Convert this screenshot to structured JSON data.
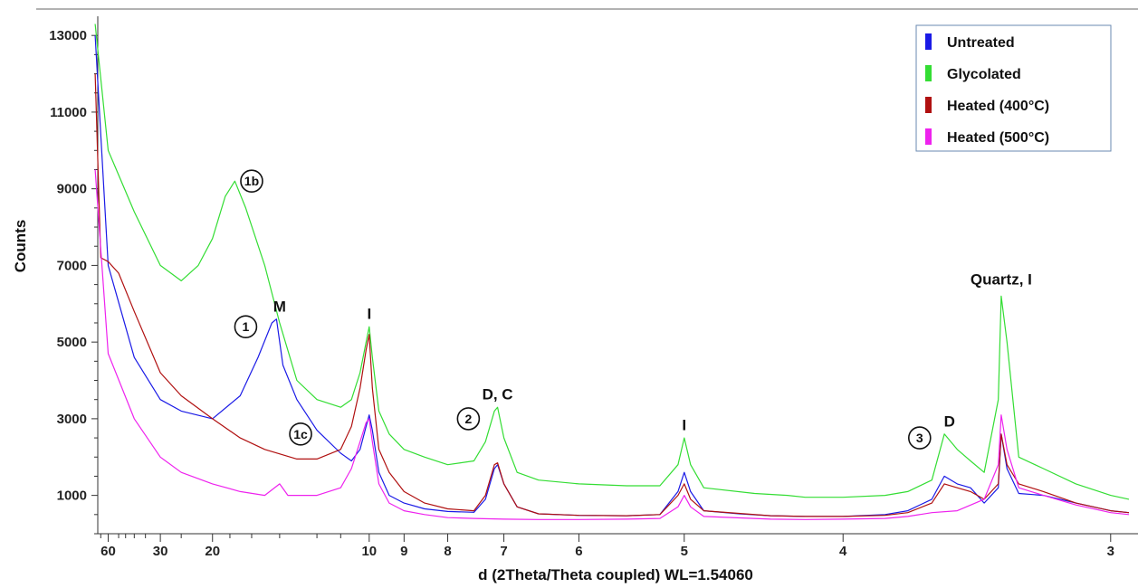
{
  "chart_data": {
    "type": "line",
    "xlabel": "d (2Theta/Theta coupled) WL=1.54060",
    "ylabel": "Counts",
    "x_axis_scale": "2theta (tick labels show d-spacing in Å)",
    "y_ticks": [
      1000,
      3000,
      5000,
      7000,
      9000,
      11000,
      13000
    ],
    "ylim": [
      0,
      13500
    ],
    "x_ticks": [
      {
        "label": "60",
        "d": 60
      },
      {
        "label": "30",
        "d": 30
      },
      {
        "label": "20",
        "d": 20
      },
      {
        "label": "10",
        "d": 10
      },
      {
        "label": "9",
        "d": 9
      },
      {
        "label": "8",
        "d": 8
      },
      {
        "label": "7",
        "d": 7
      },
      {
        "label": "6",
        "d": 6
      },
      {
        "label": "5",
        "d": 5
      },
      {
        "label": "4",
        "d": 4
      },
      {
        "label": "3",
        "d": 3
      }
    ],
    "xlim_d": [
      75,
      2.95
    ],
    "grid": false,
    "legend_position": "top-right",
    "series": [
      {
        "name": "Untreated",
        "color": "#1a1ae6",
        "points": [
          [
            80,
            13000
          ],
          [
            60,
            7000
          ],
          [
            40,
            4600
          ],
          [
            30,
            3500
          ],
          [
            25,
            3200
          ],
          [
            20,
            3000
          ],
          [
            17,
            3600
          ],
          [
            15.5,
            4600
          ],
          [
            14.5,
            5500
          ],
          [
            14.2,
            5600
          ],
          [
            13.8,
            4400
          ],
          [
            13,
            3500
          ],
          [
            12,
            2700
          ],
          [
            11,
            2100
          ],
          [
            10.6,
            1900
          ],
          [
            10.3,
            2200
          ],
          [
            10.1,
            2800
          ],
          [
            10.0,
            3100
          ],
          [
            9.9,
            2700
          ],
          [
            9.7,
            1600
          ],
          [
            9.4,
            1000
          ],
          [
            9,
            800
          ],
          [
            8.5,
            650
          ],
          [
            8,
            580
          ],
          [
            7.5,
            560
          ],
          [
            7.3,
            900
          ],
          [
            7.15,
            1700
          ],
          [
            7.1,
            1800
          ],
          [
            7.0,
            1300
          ],
          [
            6.8,
            700
          ],
          [
            6.5,
            520
          ],
          [
            6,
            480
          ],
          [
            5.5,
            470
          ],
          [
            5.2,
            500
          ],
          [
            5.05,
            1100
          ],
          [
            5.0,
            1600
          ],
          [
            4.95,
            1100
          ],
          [
            4.85,
            600
          ],
          [
            4.6,
            520
          ],
          [
            4.4,
            470
          ],
          [
            4.2,
            450
          ],
          [
            4.0,
            450
          ],
          [
            3.8,
            500
          ],
          [
            3.7,
            600
          ],
          [
            3.6,
            900
          ],
          [
            3.55,
            1500
          ],
          [
            3.5,
            1300
          ],
          [
            3.45,
            1200
          ],
          [
            3.4,
            800
          ],
          [
            3.35,
            1200
          ],
          [
            3.34,
            2600
          ],
          [
            3.32,
            1700
          ],
          [
            3.28,
            1050
          ],
          [
            3.2,
            1000
          ],
          [
            3.1,
            800
          ],
          [
            3.0,
            600
          ],
          [
            2.95,
            550
          ]
        ]
      },
      {
        "name": "Glycolated",
        "color": "#33dd33",
        "points": [
          [
            80,
            13300
          ],
          [
            60,
            10000
          ],
          [
            40,
            8400
          ],
          [
            30,
            7000
          ],
          [
            25,
            6600
          ],
          [
            22,
            7000
          ],
          [
            20,
            7700
          ],
          [
            18.5,
            8800
          ],
          [
            17.5,
            9200
          ],
          [
            16.5,
            8500
          ],
          [
            15,
            7000
          ],
          [
            14,
            5500
          ],
          [
            13,
            4000
          ],
          [
            12,
            3500
          ],
          [
            11,
            3300
          ],
          [
            10.6,
            3500
          ],
          [
            10.3,
            4200
          ],
          [
            10.1,
            5000
          ],
          [
            10.0,
            5400
          ],
          [
            9.9,
            4600
          ],
          [
            9.7,
            3200
          ],
          [
            9.4,
            2600
          ],
          [
            9,
            2200
          ],
          [
            8.5,
            2000
          ],
          [
            8,
            1800
          ],
          [
            7.5,
            1900
          ],
          [
            7.3,
            2400
          ],
          [
            7.15,
            3200
          ],
          [
            7.1,
            3300
          ],
          [
            7.0,
            2500
          ],
          [
            6.8,
            1600
          ],
          [
            6.5,
            1400
          ],
          [
            6,
            1300
          ],
          [
            5.5,
            1250
          ],
          [
            5.2,
            1250
          ],
          [
            5.05,
            1800
          ],
          [
            5.0,
            2500
          ],
          [
            4.95,
            1800
          ],
          [
            4.85,
            1200
          ],
          [
            4.5,
            1050
          ],
          [
            4.3,
            1000
          ],
          [
            4.2,
            950
          ],
          [
            4.0,
            950
          ],
          [
            3.8,
            1000
          ],
          [
            3.7,
            1100
          ],
          [
            3.6,
            1400
          ],
          [
            3.55,
            2600
          ],
          [
            3.5,
            2200
          ],
          [
            3.45,
            1900
          ],
          [
            3.4,
            1600
          ],
          [
            3.35,
            3500
          ],
          [
            3.34,
            6200
          ],
          [
            3.32,
            5000
          ],
          [
            3.28,
            2000
          ],
          [
            3.2,
            1700
          ],
          [
            3.1,
            1300
          ],
          [
            3.0,
            1000
          ],
          [
            2.95,
            900
          ]
        ]
      },
      {
        "name": "Heated (400°C)",
        "color": "#b01010",
        "points": [
          [
            80,
            12000
          ],
          [
            70,
            7200
          ],
          [
            60,
            7100
          ],
          [
            50,
            6800
          ],
          [
            40,
            5800
          ],
          [
            30,
            4200
          ],
          [
            25,
            3600
          ],
          [
            20,
            3000
          ],
          [
            17,
            2500
          ],
          [
            15,
            2200
          ],
          [
            13,
            1950
          ],
          [
            12,
            1950
          ],
          [
            11,
            2200
          ],
          [
            10.6,
            2800
          ],
          [
            10.3,
            3800
          ],
          [
            10.1,
            4800
          ],
          [
            10.0,
            5200
          ],
          [
            9.9,
            3800
          ],
          [
            9.7,
            2200
          ],
          [
            9.4,
            1600
          ],
          [
            9,
            1100
          ],
          [
            8.5,
            800
          ],
          [
            8,
            650
          ],
          [
            7.5,
            600
          ],
          [
            7.3,
            1000
          ],
          [
            7.15,
            1800
          ],
          [
            7.1,
            1850
          ],
          [
            7.0,
            1300
          ],
          [
            6.8,
            700
          ],
          [
            6.5,
            520
          ],
          [
            6,
            480
          ],
          [
            5.5,
            470
          ],
          [
            5.2,
            500
          ],
          [
            5.05,
            1000
          ],
          [
            5.0,
            1300
          ],
          [
            4.95,
            900
          ],
          [
            4.85,
            600
          ],
          [
            4.4,
            470
          ],
          [
            4.2,
            450
          ],
          [
            4.0,
            450
          ],
          [
            3.8,
            480
          ],
          [
            3.7,
            550
          ],
          [
            3.6,
            800
          ],
          [
            3.55,
            1300
          ],
          [
            3.5,
            1200
          ],
          [
            3.45,
            1100
          ],
          [
            3.4,
            900
          ],
          [
            3.35,
            1300
          ],
          [
            3.34,
            2600
          ],
          [
            3.32,
            1800
          ],
          [
            3.28,
            1300
          ],
          [
            3.2,
            1100
          ],
          [
            3.1,
            800
          ],
          [
            3.0,
            600
          ],
          [
            2.95,
            550
          ]
        ]
      },
      {
        "name": "Heated (500°C)",
        "color": "#ee22ee",
        "points": [
          [
            80,
            9500
          ],
          [
            60,
            4700
          ],
          [
            40,
            3000
          ],
          [
            30,
            2000
          ],
          [
            25,
            1600
          ],
          [
            20,
            1300
          ],
          [
            17,
            1100
          ],
          [
            15,
            1000
          ],
          [
            14,
            1300
          ],
          [
            13.5,
            1000
          ],
          [
            12,
            1000
          ],
          [
            11,
            1200
          ],
          [
            10.6,
            1700
          ],
          [
            10.3,
            2400
          ],
          [
            10.1,
            2900
          ],
          [
            10.0,
            3000
          ],
          [
            9.9,
            2400
          ],
          [
            9.7,
            1300
          ],
          [
            9.4,
            800
          ],
          [
            9,
            600
          ],
          [
            8.5,
            500
          ],
          [
            8,
            420
          ],
          [
            7.5,
            400
          ],
          [
            7,
            380
          ],
          [
            6.5,
            370
          ],
          [
            6,
            370
          ],
          [
            5.5,
            380
          ],
          [
            5.2,
            400
          ],
          [
            5.05,
            700
          ],
          [
            5.0,
            1000
          ],
          [
            4.95,
            700
          ],
          [
            4.85,
            450
          ],
          [
            4.4,
            380
          ],
          [
            4.2,
            370
          ],
          [
            4.0,
            380
          ],
          [
            3.8,
            400
          ],
          [
            3.7,
            450
          ],
          [
            3.6,
            550
          ],
          [
            3.5,
            600
          ],
          [
            3.4,
            900
          ],
          [
            3.35,
            1800
          ],
          [
            3.34,
            3100
          ],
          [
            3.32,
            2200
          ],
          [
            3.28,
            1200
          ],
          [
            3.2,
            1000
          ],
          [
            3.1,
            750
          ],
          [
            3.0,
            550
          ],
          [
            2.95,
            500
          ]
        ]
      }
    ],
    "annotations": [
      {
        "text": "M",
        "d": 14.0,
        "y": 5800
      },
      {
        "text": "I",
        "d": 10.0,
        "y": 5600
      },
      {
        "text": "D, C",
        "d": 7.1,
        "y": 3500
      },
      {
        "text": "I",
        "d": 5.0,
        "y": 2700
      },
      {
        "text": "D",
        "d": 3.53,
        "y": 2800
      },
      {
        "text": "Quartz, I",
        "d": 3.34,
        "y": 6500
      }
    ],
    "circled_labels": [
      {
        "text": "1b",
        "d": 16.0,
        "y": 9200
      },
      {
        "text": "1",
        "d": 16.5,
        "y": 5400
      },
      {
        "text": "1c",
        "d": 12.8,
        "y": 2600
      },
      {
        "text": "2",
        "d": 7.6,
        "y": 3000
      },
      {
        "text": "3",
        "d": 3.65,
        "y": 2500
      }
    ]
  }
}
